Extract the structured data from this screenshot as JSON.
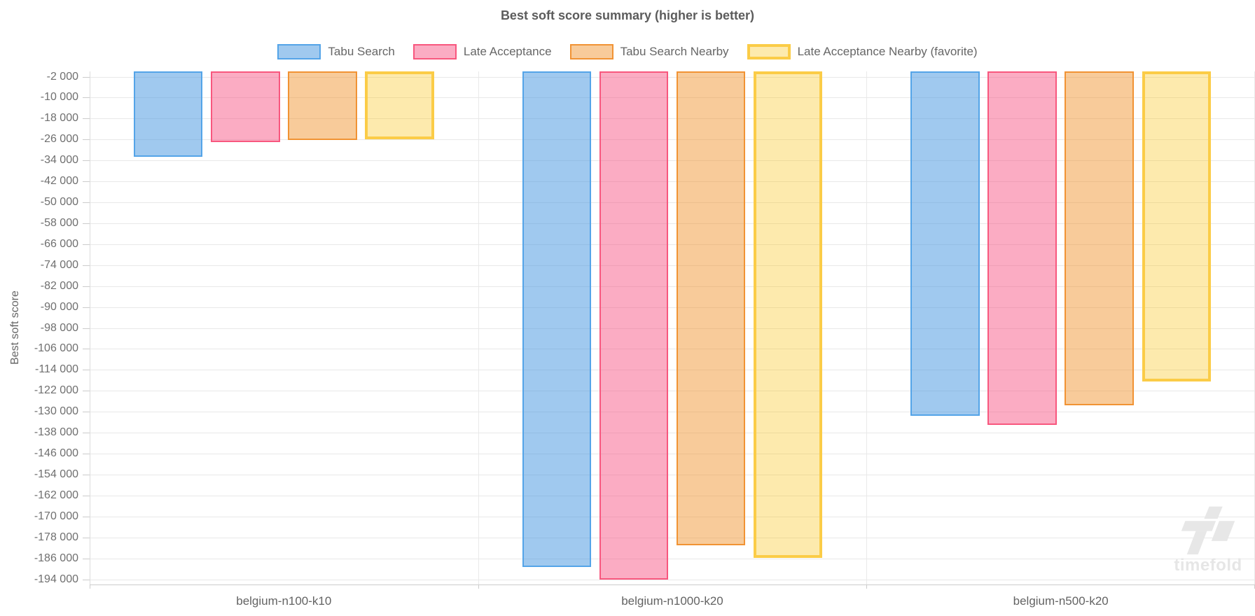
{
  "title": "Best soft score summary (higher is better)",
  "y_axis_title": "Best soft score",
  "watermark": "timefold",
  "colors": {
    "grid": "#e9e9e9",
    "axis": "#cccccc",
    "text": "#666666",
    "title_text": "#5c5c5c",
    "watermark_gray": "#e7e7e7"
  },
  "chart_data": {
    "type": "bar",
    "title": "Best soft score summary (higher is better)",
    "xlabel": "",
    "ylabel": "Best soft score",
    "grid": true,
    "legend_position": "top",
    "categories": [
      "belgium-n100-k10",
      "belgium-n1000-k20",
      "belgium-n500-k20"
    ],
    "series": [
      {
        "name": "Tabu Search",
        "values": [
          -32600,
          -189200,
          -131500
        ],
        "fill": "rgba(66,148,224,0.5)",
        "border": "#54A4E8",
        "favorite": false
      },
      {
        "name": "Late Acceptance",
        "values": [
          -26900,
          -194000,
          -135000
        ],
        "fill": "rgba(246,72,122,0.45)",
        "border": "#F8577E",
        "favorite": false
      },
      {
        "name": "Tabu Search Nearby",
        "values": [
          -26200,
          -181000,
          -127500
        ],
        "fill": "rgba(240,140,30,0.45)",
        "border": "#F19334",
        "favorite": false
      },
      {
        "name": "Late Acceptance Nearby (favorite)",
        "values": [
          -25900,
          -185800,
          -118500
        ],
        "fill": "rgba(250,195,20,0.35)",
        "border": "#FBCC47",
        "favorite": true
      }
    ],
    "ylim": [
      -196000,
      0
    ],
    "yticks": [
      -2000,
      -10000,
      -18000,
      -26000,
      -34000,
      -42000,
      -50000,
      -58000,
      -66000,
      -74000,
      -82000,
      -90000,
      -98000,
      -106000,
      -114000,
      -122000,
      -130000,
      -138000,
      -146000,
      -154000,
      -162000,
      -170000,
      -178000,
      -186000,
      -194000
    ],
    "ytick_labels": [
      "-2 000",
      "-10 000",
      "-18 000",
      "-26 000",
      "-34 000",
      "-42 000",
      "-50 000",
      "-58 000",
      "-66 000",
      "-74 000",
      "-82 000",
      "-90 000",
      "-98 000",
      "-106 000",
      "-114 000",
      "-122 000",
      "-130 000",
      "-138 000",
      "-146 000",
      "-154 000",
      "-162 000",
      "-170 000",
      "-178 000",
      "-186 000",
      "-194 000"
    ]
  }
}
